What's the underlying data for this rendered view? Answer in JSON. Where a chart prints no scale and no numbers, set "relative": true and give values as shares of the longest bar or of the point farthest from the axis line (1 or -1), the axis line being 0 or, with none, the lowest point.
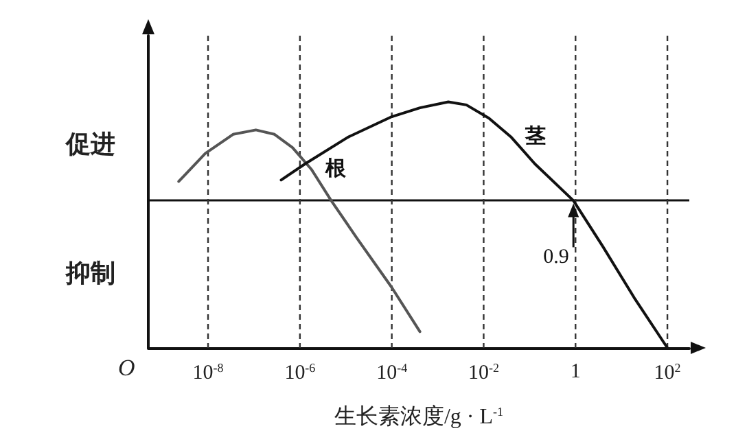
{
  "chart_data": {
    "type": "line",
    "relative": true,
    "xlabel": "生长素浓度/g · L$^{-1}$",
    "log": "x",
    "xlim": [
      5e-10,
      300
    ],
    "xticks": [
      {
        "value": 1e-08,
        "label": "10$^{-8}$"
      },
      {
        "value": 1e-06,
        "label": "10$^{-6}$"
      },
      {
        "value": 0.0001,
        "label": "10$^{-4}$"
      },
      {
        "value": 0.01,
        "label": "10$^{-2}$"
      },
      1,
      {
        "value": 100,
        "label": "10$^{2}$"
      }
    ],
    "grid": "x",
    "marker": "none",
    "series": [
      {
        "name": "根",
        "color": "#555555",
        "x": [
          2.3e-09,
          8.7e-09,
          3.5e-08,
          1.1e-07,
          2.8e-07,
          6.9e-07,
          1.8e-06,
          4.8e-06,
          1.7e-05,
          0.0001,
          0.00041
        ],
        "values": [
          0.13,
          0.32,
          0.45,
          0.48,
          0.45,
          0.36,
          0.21,
          0,
          -0.25,
          -0.59,
          -0.89
        ]
      },
      {
        "name": "茎",
        "color": "#111111",
        "x": [
          3.9e-07,
          1.3e-06,
          1.1e-05,
          0.0001,
          0.00041,
          0.0017,
          0.0042,
          0.013,
          0.04,
          0.13,
          0.9,
          3.9,
          19,
          100
        ],
        "values": [
          0.14,
          0.25,
          0.43,
          0.57,
          0.63,
          0.67,
          0.65,
          0.56,
          0.43,
          0.25,
          0,
          -0.31,
          -0.66,
          -1
        ]
      }
    ],
    "ref_lines": [
      {
        "axis": "y",
        "value": 0,
        "color": "#111111"
      }
    ],
    "annotations": [
      "O",
      "促进",
      "抑制",
      {
        "text": "0.9",
        "x": 0.9,
        "y": 0
      }
    ]
  }
}
